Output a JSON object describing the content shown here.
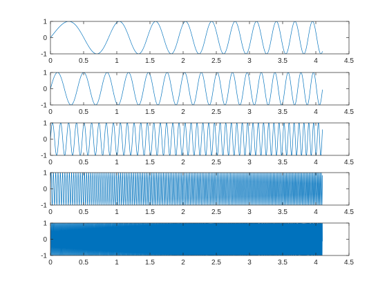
{
  "chart_data": [
    {
      "type": "line",
      "series": [
        {
          "function": "sin(2*pi*f(t)*t)",
          "f_start_hz": 0.8,
          "f_end_hz": 4.0,
          "t_start": 0,
          "t_end": 4.1,
          "color": "#0072BD"
        }
      ],
      "xlim": [
        0,
        4.5
      ],
      "ylim": [
        -1,
        1
      ],
      "xticks": [
        0,
        0.5,
        1,
        1.5,
        2,
        2.5,
        3,
        3.5,
        4,
        4.5
      ],
      "xticklabels": [
        "0",
        "0.5",
        "1",
        "1.5",
        "2",
        "2.5",
        "3",
        "3.5",
        "4",
        "4.5"
      ],
      "yticks": [
        -1,
        0,
        1
      ],
      "yticklabels": [
        "-1",
        "0",
        "1"
      ]
    },
    {
      "type": "line",
      "series": [
        {
          "function": "sin(2*pi*f(t)*t)",
          "f_start_hz": 2.3,
          "f_end_hz": 5.5,
          "t_start": 0,
          "t_end": 4.1,
          "color": "#0072BD"
        }
      ],
      "xlim": [
        0,
        4.5
      ],
      "ylim": [
        -1,
        1
      ],
      "xticks": [
        0,
        0.5,
        1,
        1.5,
        2,
        2.5,
        3,
        3.5,
        4,
        4.5
      ],
      "xticklabels": [
        "0",
        "0.5",
        "1",
        "1.5",
        "2",
        "2.5",
        "3",
        "3.5",
        "4",
        "4.5"
      ],
      "yticks": [
        -1,
        0,
        1
      ],
      "yticklabels": [
        "-1",
        "0",
        "1"
      ]
    },
    {
      "type": "line",
      "series": [
        {
          "function": "sin(2*pi*f(t)*t)",
          "f_start_hz": 8.0,
          "f_end_hz": 14.0,
          "t_start": 0,
          "t_end": 4.1,
          "color": "#0072BD"
        }
      ],
      "xlim": [
        0,
        4.5
      ],
      "ylim": [
        -1,
        1
      ],
      "xticks": [
        0,
        0.5,
        1,
        1.5,
        2,
        2.5,
        3,
        3.5,
        4,
        4.5
      ],
      "xticklabels": [
        "0",
        "0.5",
        "1",
        "1.5",
        "2",
        "2.5",
        "3",
        "3.5",
        "4",
        "4.5"
      ],
      "yticks": [
        -1,
        0,
        1
      ],
      "yticklabels": [
        "-1",
        "0",
        "1"
      ]
    },
    {
      "type": "line",
      "series": [
        {
          "function": "sin(2*pi*f(t)*t)",
          "f_start_hz": 28.0,
          "f_end_hz": 55.0,
          "t_start": 0,
          "t_end": 4.1,
          "color": "#0072BD"
        }
      ],
      "xlim": [
        0,
        4.5
      ],
      "ylim": [
        -1,
        1
      ],
      "xticks": [
        0,
        0.5,
        1,
        1.5,
        2,
        2.5,
        3,
        3.5,
        4,
        4.5
      ],
      "xticklabels": [
        "0",
        "0.5",
        "1",
        "1.5",
        "2",
        "2.5",
        "3",
        "3.5",
        "4",
        "4.5"
      ],
      "yticks": [
        -1,
        0,
        1
      ],
      "yticklabels": [
        "-1",
        "0",
        "1"
      ]
    },
    {
      "type": "line",
      "series": [
        {
          "function": "sin(2*pi*f(t)*t)",
          "f_start_hz": 90.0,
          "f_end_hz": 160.0,
          "t_start": 0,
          "t_end": 4.1,
          "color": "#0072BD"
        }
      ],
      "xlim": [
        0,
        4.5
      ],
      "ylim": [
        -1,
        1
      ],
      "xticks": [
        0,
        0.5,
        1,
        1.5,
        2,
        2.5,
        3,
        3.5,
        4,
        4.5
      ],
      "xticklabels": [
        "0",
        "0.5",
        "1",
        "1.5",
        "2",
        "2.5",
        "3",
        "3.5",
        "4",
        "4.5"
      ],
      "yticks": [
        -1,
        0,
        1
      ],
      "yticklabels": [
        "-1",
        "0",
        "1"
      ]
    }
  ]
}
